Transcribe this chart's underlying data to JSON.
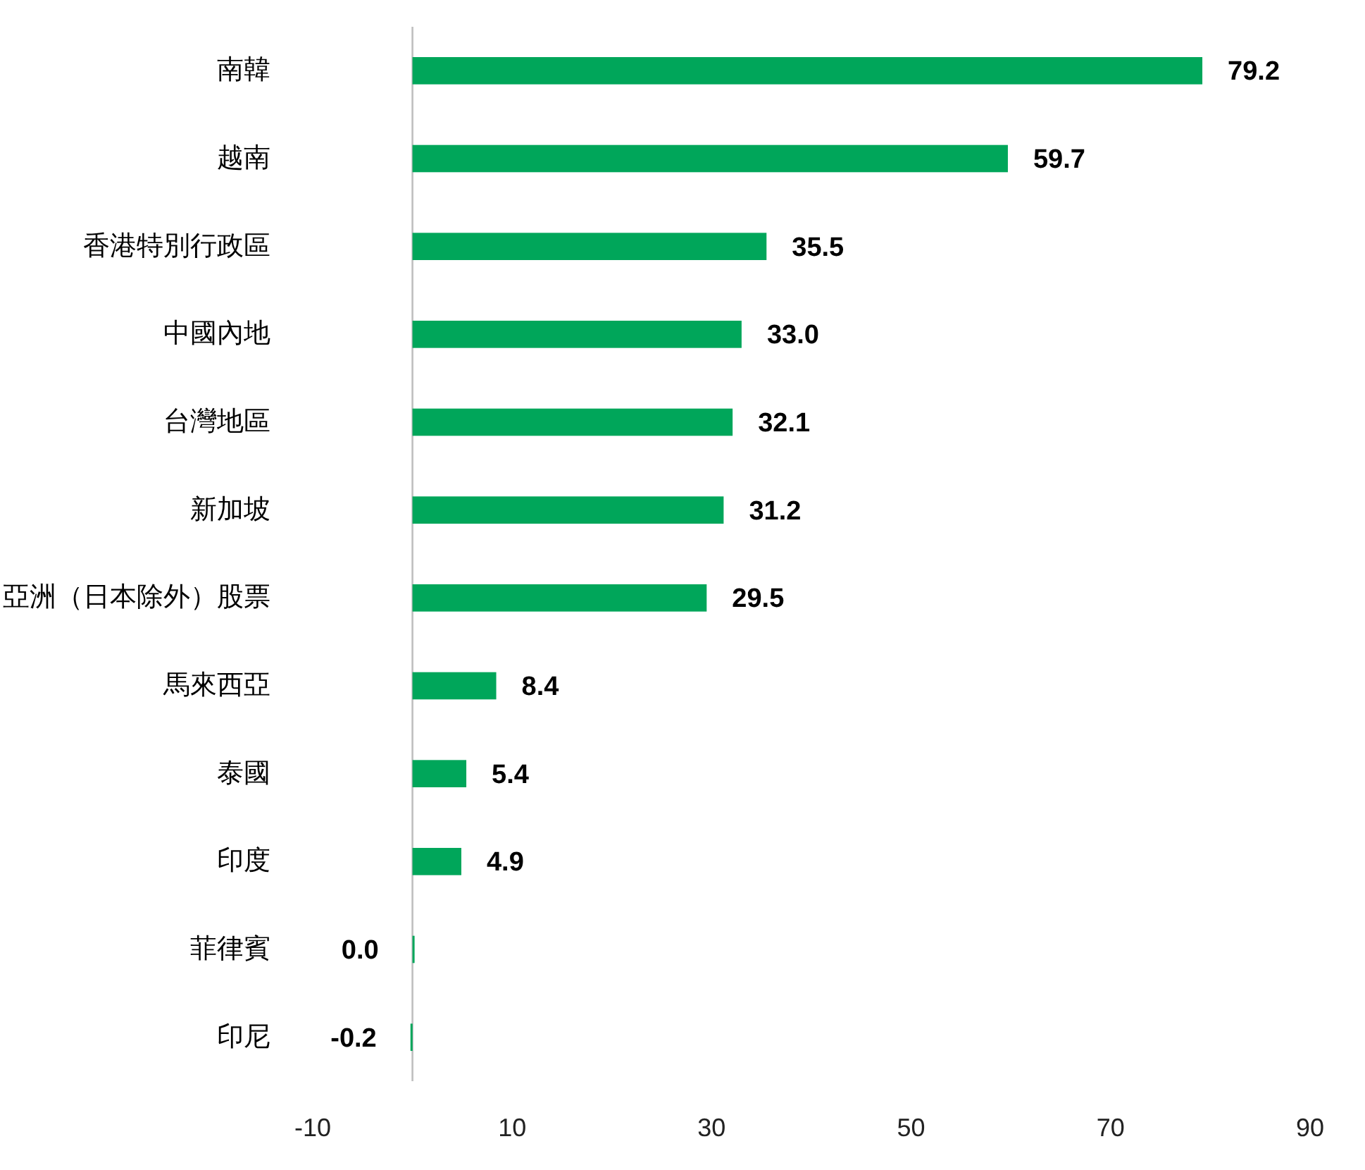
{
  "chart_data": {
    "type": "bar",
    "orientation": "horizontal",
    "categories": [
      "南韓",
      "越南",
      "香港特別行政區",
      "中國內地",
      "台灣地區",
      "新加坡",
      "亞洲（日本除外）股票",
      "馬來西亞",
      "泰國",
      "印度",
      "菲律賓",
      "印尼"
    ],
    "values": [
      79.2,
      59.7,
      35.5,
      33.0,
      32.1,
      31.2,
      29.5,
      8.4,
      5.4,
      4.9,
      0.0,
      -0.2
    ],
    "value_labels": [
      "79.2",
      "59.7",
      "35.5",
      "33.0",
      "32.1",
      "31.2",
      "29.5",
      "8.4",
      "5.4",
      "4.9",
      "0.0",
      "-0.2"
    ],
    "color": "#00a65a",
    "xlim": [
      -10,
      90
    ],
    "xticks": [
      -10,
      10,
      30,
      50,
      70,
      90
    ]
  }
}
